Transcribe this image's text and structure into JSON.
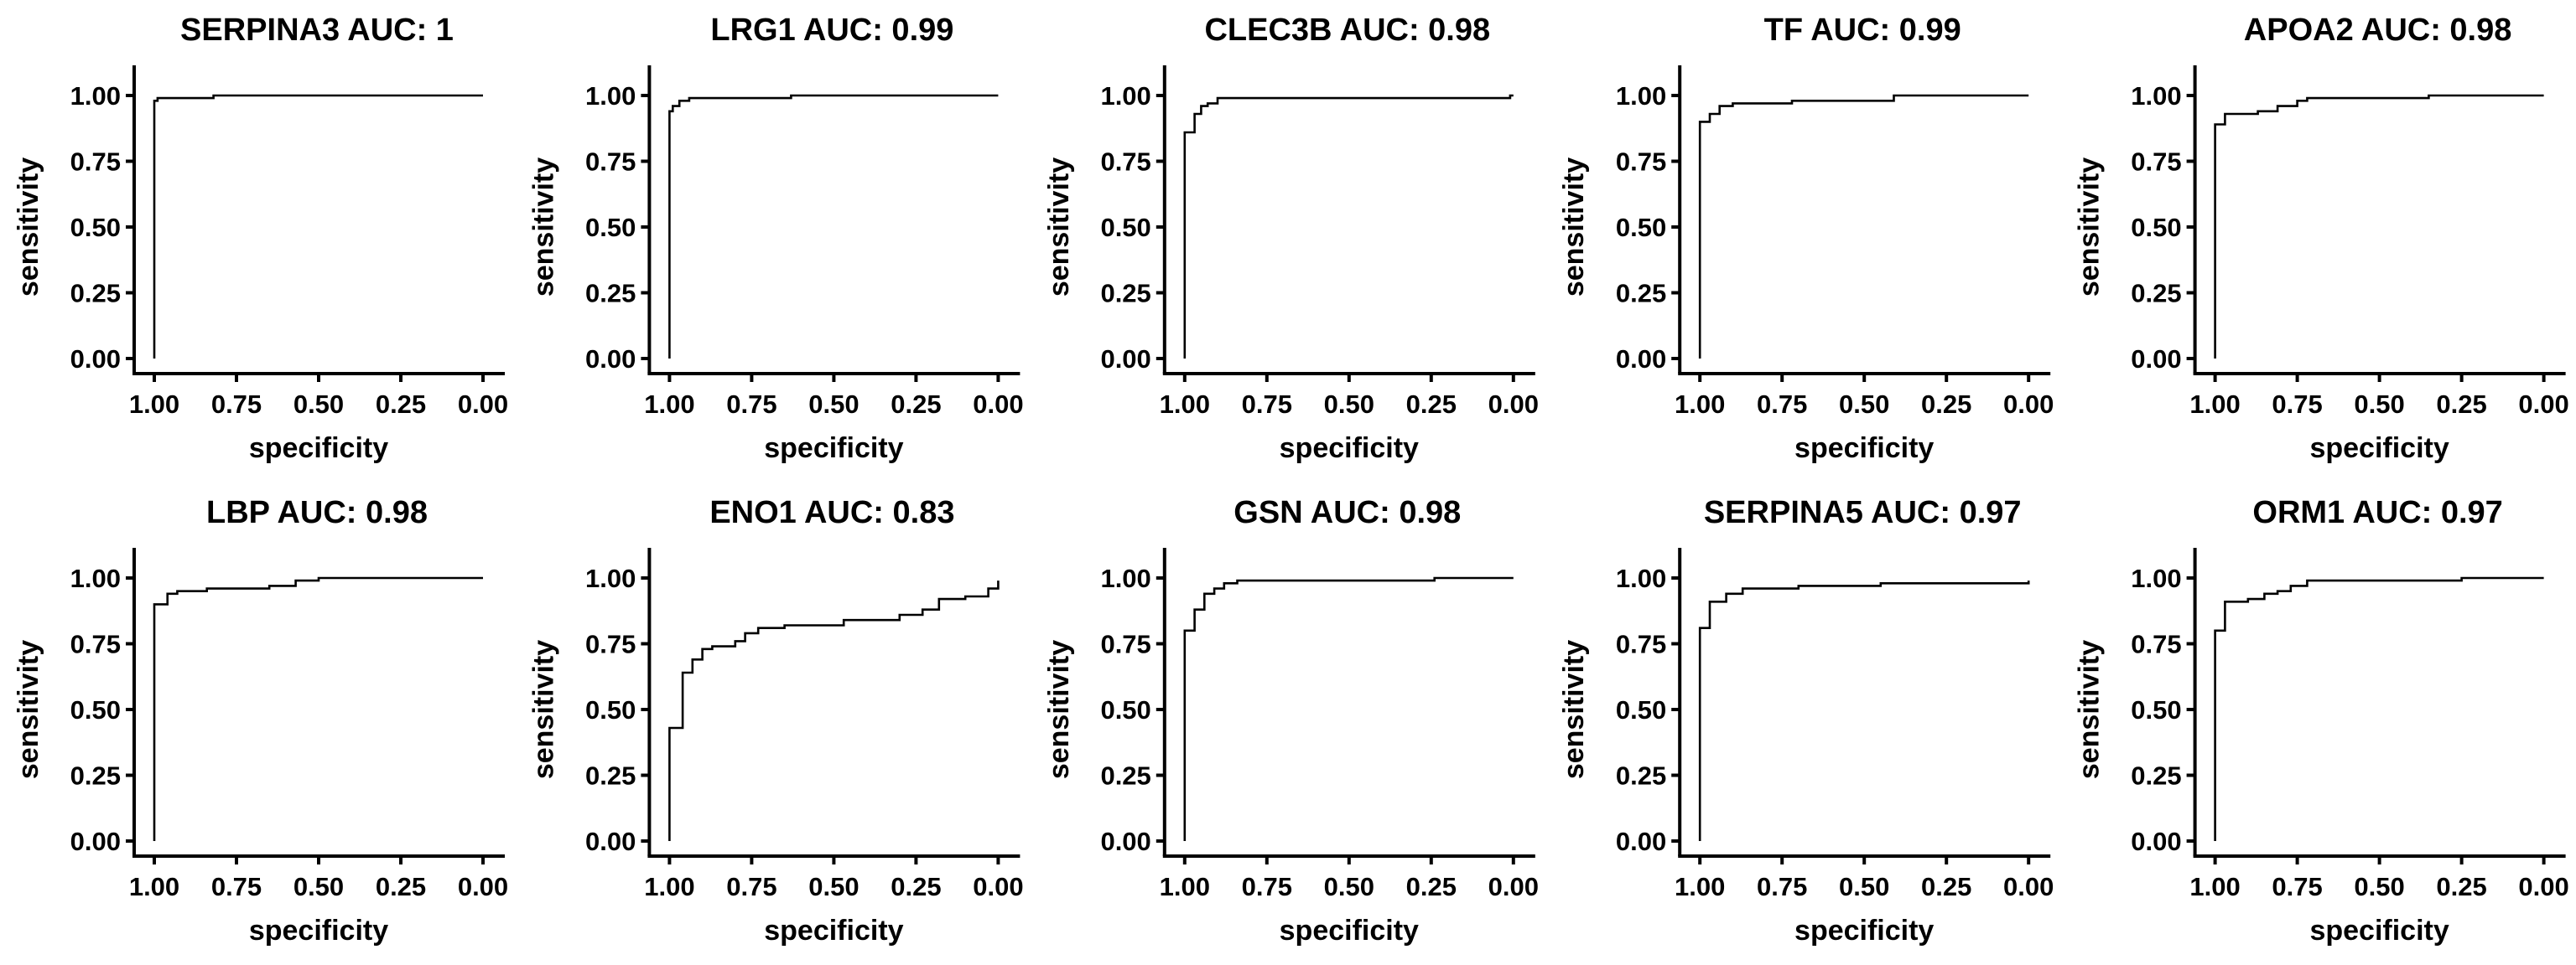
{
  "chart_data": [
    {
      "type": "line",
      "title": "SERPINA3 AUC: 1",
      "xlabel": "specificity",
      "ylabel": "sensitivity",
      "xlim": [
        1.0,
        0.0
      ],
      "ylim": [
        0.0,
        1.0
      ],
      "x_ticks": [
        "1.00",
        "0.75",
        "0.50",
        "0.25",
        "0.00"
      ],
      "y_ticks": [
        "0.00",
        "0.25",
        "0.50",
        "0.75",
        "1.00"
      ],
      "grid": false,
      "series": [
        {
          "x": [
            1.0,
            1.0,
            0.99,
            0.99,
            0.82,
            0.82,
            0.0
          ],
          "y": [
            0.0,
            0.98,
            0.98,
            0.99,
            0.99,
            1.0,
            1.0
          ]
        }
      ]
    },
    {
      "type": "line",
      "title": "LRG1 AUC: 0.99",
      "xlabel": "specificity",
      "ylabel": "sensitivity",
      "xlim": [
        1.0,
        0.0
      ],
      "ylim": [
        0.0,
        1.0
      ],
      "x_ticks": [
        "1.00",
        "0.75",
        "0.50",
        "0.25",
        "0.00"
      ],
      "y_ticks": [
        "0.00",
        "0.25",
        "0.50",
        "0.75",
        "1.00"
      ],
      "grid": false,
      "series": [
        {
          "x": [
            1.0,
            1.0,
            0.99,
            0.99,
            0.97,
            0.97,
            0.94,
            0.94,
            0.63,
            0.63,
            0.0
          ],
          "y": [
            0.0,
            0.94,
            0.94,
            0.96,
            0.96,
            0.98,
            0.98,
            0.99,
            0.99,
            1.0,
            1.0
          ]
        }
      ]
    },
    {
      "type": "line",
      "title": "CLEC3B AUC: 0.98",
      "xlabel": "specificity",
      "ylabel": "sensitivity",
      "xlim": [
        1.0,
        0.0
      ],
      "ylim": [
        0.0,
        1.0
      ],
      "x_ticks": [
        "1.00",
        "0.75",
        "0.50",
        "0.25",
        "0.00"
      ],
      "y_ticks": [
        "0.00",
        "0.25",
        "0.50",
        "0.75",
        "1.00"
      ],
      "grid": false,
      "series": [
        {
          "x": [
            1.0,
            1.0,
            0.97,
            0.97,
            0.95,
            0.95,
            0.93,
            0.93,
            0.9,
            0.9,
            0.01,
            0.01,
            0.0
          ],
          "y": [
            0.0,
            0.86,
            0.86,
            0.93,
            0.93,
            0.96,
            0.96,
            0.97,
            0.97,
            0.99,
            0.99,
            1.0,
            1.0
          ]
        }
      ]
    },
    {
      "type": "line",
      "title": "TF AUC: 0.99",
      "xlabel": "specificity",
      "ylabel": "sensitivity",
      "xlim": [
        1.0,
        0.0
      ],
      "ylim": [
        0.0,
        1.0
      ],
      "x_ticks": [
        "1.00",
        "0.75",
        "0.50",
        "0.25",
        "0.00"
      ],
      "y_ticks": [
        "0.00",
        "0.25",
        "0.50",
        "0.75",
        "1.00"
      ],
      "grid": false,
      "series": [
        {
          "x": [
            1.0,
            1.0,
            0.97,
            0.97,
            0.94,
            0.94,
            0.9,
            0.9,
            0.72,
            0.72,
            0.41,
            0.41,
            0.0
          ],
          "y": [
            0.0,
            0.9,
            0.9,
            0.93,
            0.93,
            0.96,
            0.96,
            0.97,
            0.97,
            0.98,
            0.98,
            1.0,
            1.0
          ]
        }
      ]
    },
    {
      "type": "line",
      "title": "APOA2 AUC: 0.98",
      "xlabel": "specificity",
      "ylabel": "sensitivity",
      "xlim": [
        1.0,
        0.0
      ],
      "ylim": [
        0.0,
        1.0
      ],
      "x_ticks": [
        "1.00",
        "0.75",
        "0.50",
        "0.25",
        "0.00"
      ],
      "y_ticks": [
        "0.00",
        "0.25",
        "0.50",
        "0.75",
        "1.00"
      ],
      "grid": false,
      "series": [
        {
          "x": [
            1.0,
            1.0,
            0.97,
            0.97,
            0.87,
            0.87,
            0.81,
            0.81,
            0.75,
            0.75,
            0.72,
            0.72,
            0.35,
            0.35,
            0.0
          ],
          "y": [
            0.0,
            0.89,
            0.89,
            0.93,
            0.93,
            0.94,
            0.94,
            0.96,
            0.96,
            0.98,
            0.98,
            0.99,
            0.99,
            1.0,
            1.0
          ]
        }
      ]
    },
    {
      "type": "line",
      "title": "LBP AUC: 0.98",
      "xlabel": "specificity",
      "ylabel": "sensitivity",
      "xlim": [
        1.0,
        0.0
      ],
      "ylim": [
        0.0,
        1.0
      ],
      "x_ticks": [
        "1.00",
        "0.75",
        "0.50",
        "0.25",
        "0.00"
      ],
      "y_ticks": [
        "0.00",
        "0.25",
        "0.50",
        "0.75",
        "1.00"
      ],
      "grid": false,
      "series": [
        {
          "x": [
            1.0,
            1.0,
            0.96,
            0.96,
            0.93,
            0.93,
            0.84,
            0.84,
            0.65,
            0.65,
            0.57,
            0.57,
            0.5,
            0.5,
            0.0
          ],
          "y": [
            0.0,
            0.9,
            0.9,
            0.94,
            0.94,
            0.95,
            0.95,
            0.96,
            0.96,
            0.97,
            0.97,
            0.99,
            0.99,
            1.0,
            1.0
          ]
        }
      ]
    },
    {
      "type": "line",
      "title": "ENO1 AUC: 0.83",
      "xlabel": "specificity",
      "ylabel": "sensitivity",
      "xlim": [
        1.0,
        0.0
      ],
      "ylim": [
        0.0,
        1.0
      ],
      "x_ticks": [
        "1.00",
        "0.75",
        "0.50",
        "0.25",
        "0.00"
      ],
      "y_ticks": [
        "0.00",
        "0.25",
        "0.50",
        "0.75",
        "1.00"
      ],
      "grid": false,
      "series": [
        {
          "x": [
            1.0,
            1.0,
            0.96,
            0.96,
            0.93,
            0.93,
            0.9,
            0.9,
            0.87,
            0.87,
            0.8,
            0.8,
            0.77,
            0.77,
            0.73,
            0.73,
            0.65,
            0.65,
            0.47,
            0.47,
            0.3,
            0.3,
            0.23,
            0.23,
            0.18,
            0.18,
            0.1,
            0.1,
            0.03,
            0.03,
            0.0,
            0.0
          ],
          "y": [
            0.0,
            0.43,
            0.43,
            0.64,
            0.64,
            0.69,
            0.69,
            0.73,
            0.73,
            0.74,
            0.74,
            0.76,
            0.76,
            0.79,
            0.79,
            0.81,
            0.81,
            0.82,
            0.82,
            0.84,
            0.84,
            0.86,
            0.86,
            0.88,
            0.88,
            0.92,
            0.92,
            0.93,
            0.93,
            0.96,
            0.96,
            0.99
          ]
        }
      ]
    },
    {
      "type": "line",
      "title": "GSN AUC: 0.98",
      "xlabel": "specificity",
      "ylabel": "sensitivity",
      "xlim": [
        1.0,
        0.0
      ],
      "ylim": [
        0.0,
        1.0
      ],
      "x_ticks": [
        "1.00",
        "0.75",
        "0.50",
        "0.25",
        "0.00"
      ],
      "y_ticks": [
        "0.00",
        "0.25",
        "0.50",
        "0.75",
        "1.00"
      ],
      "grid": false,
      "series": [
        {
          "x": [
            1.0,
            1.0,
            0.97,
            0.97,
            0.94,
            0.94,
            0.91,
            0.91,
            0.88,
            0.88,
            0.84,
            0.84,
            0.24,
            0.24,
            0.0
          ],
          "y": [
            0.0,
            0.8,
            0.8,
            0.88,
            0.88,
            0.94,
            0.94,
            0.96,
            0.96,
            0.98,
            0.98,
            0.99,
            0.99,
            1.0,
            1.0
          ]
        }
      ]
    },
    {
      "type": "line",
      "title": "SERPINA5 AUC: 0.97",
      "xlabel": "specificity",
      "ylabel": "sensitivity",
      "xlim": [
        1.0,
        0.0
      ],
      "ylim": [
        0.0,
        1.0
      ],
      "x_ticks": [
        "1.00",
        "0.75",
        "0.50",
        "0.25",
        "0.00"
      ],
      "y_ticks": [
        "0.00",
        "0.25",
        "0.50",
        "0.75",
        "1.00"
      ],
      "grid": false,
      "series": [
        {
          "x": [
            1.0,
            1.0,
            0.97,
            0.97,
            0.92,
            0.92,
            0.87,
            0.87,
            0.7,
            0.7,
            0.45,
            0.45,
            0.0,
            0.0
          ],
          "y": [
            0.0,
            0.81,
            0.81,
            0.91,
            0.91,
            0.94,
            0.94,
            0.96,
            0.96,
            0.97,
            0.97,
            0.98,
            0.98,
            0.99
          ]
        }
      ]
    },
    {
      "type": "line",
      "title": "ORM1 AUC: 0.97",
      "xlabel": "specificity",
      "ylabel": "sensitivity",
      "xlim": [
        1.0,
        0.0
      ],
      "ylim": [
        0.0,
        1.0
      ],
      "x_ticks": [
        "1.00",
        "0.75",
        "0.50",
        "0.25",
        "0.00"
      ],
      "y_ticks": [
        "0.00",
        "0.25",
        "0.50",
        "0.75",
        "1.00"
      ],
      "grid": false,
      "series": [
        {
          "x": [
            1.0,
            1.0,
            0.97,
            0.97,
            0.9,
            0.9,
            0.85,
            0.85,
            0.81,
            0.81,
            0.77,
            0.77,
            0.72,
            0.72,
            0.25,
            0.25,
            0.0
          ],
          "y": [
            0.0,
            0.8,
            0.8,
            0.91,
            0.91,
            0.92,
            0.92,
            0.94,
            0.94,
            0.95,
            0.95,
            0.97,
            0.97,
            0.99,
            0.99,
            1.0,
            1.0
          ]
        }
      ]
    }
  ]
}
